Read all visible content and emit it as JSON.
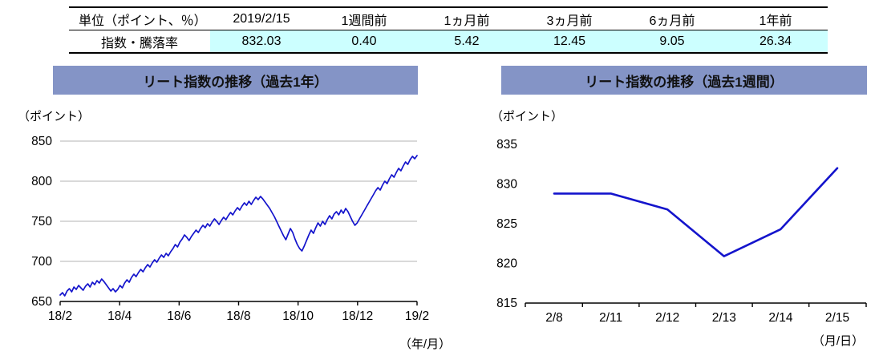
{
  "table": {
    "header": [
      "単位（ポイント、％）",
      "2019/2/15",
      "1週間前",
      "1ヵ月前",
      "3ヵ月前",
      "6ヵ月前",
      "1年前"
    ],
    "row_label": "指数・騰落率",
    "values": [
      "832.03",
      "0.40",
      "5.42",
      "12.45",
      "9.05",
      "26.34"
    ]
  },
  "colors": {
    "line": "#1414cc",
    "banner": "#8494c6",
    "cell_bg": "#ccffff",
    "grid": "#b3b3b3",
    "axis": "#000000"
  },
  "chart_data": [
    {
      "type": "line",
      "title": "リート指数の推移（過去1年）",
      "ylabel": "（ポイント）",
      "xlabel": "（年/月）",
      "ylim": [
        650,
        850
      ],
      "yticks": [
        650,
        700,
        750,
        800,
        850
      ],
      "grid": true,
      "legend": "none",
      "xticklabels": [
        "18/2",
        "18/4",
        "18/6",
        "18/8",
        "18/10",
        "18/12",
        "19/2"
      ],
      "values": [
        658,
        661,
        657,
        663,
        666,
        662,
        668,
        665,
        670,
        667,
        664,
        669,
        672,
        668,
        674,
        671,
        676,
        673,
        678,
        675,
        671,
        667,
        663,
        666,
        662,
        665,
        670,
        667,
        673,
        677,
        674,
        680,
        684,
        681,
        686,
        690,
        687,
        692,
        696,
        693,
        698,
        702,
        699,
        704,
        708,
        705,
        710,
        707,
        712,
        716,
        721,
        718,
        724,
        728,
        733,
        730,
        726,
        731,
        735,
        739,
        736,
        741,
        745,
        742,
        747,
        744,
        749,
        753,
        750,
        746,
        751,
        755,
        752,
        757,
        761,
        758,
        763,
        767,
        764,
        769,
        773,
        770,
        775,
        771,
        776,
        780,
        777,
        781,
        778,
        774,
        770,
        766,
        761,
        756,
        750,
        744,
        738,
        732,
        727,
        734,
        741,
        736,
        728,
        721,
        716,
        713,
        719,
        726,
        733,
        739,
        735,
        742,
        748,
        744,
        750,
        746,
        752,
        757,
        753,
        759,
        762,
        758,
        764,
        760,
        766,
        762,
        756,
        750,
        745,
        748,
        753,
        758,
        763,
        768,
        773,
        778,
        783,
        788,
        792,
        789,
        795,
        800,
        797,
        803,
        808,
        805,
        811,
        816,
        813,
        819,
        824,
        821,
        827,
        831,
        828,
        832
      ]
    },
    {
      "type": "line",
      "title": "リート指数の推移（過去1週間）",
      "ylabel": "（ポイント）",
      "xlabel": "（月/日）",
      "ylim": [
        815,
        835
      ],
      "yticks": [
        815,
        820,
        825,
        830,
        835
      ],
      "grid": false,
      "legend": "none",
      "xticklabels": [
        "2/8",
        "2/11",
        "2/12",
        "2/13",
        "2/14",
        "2/15"
      ],
      "values": [
        828.8,
        828.8,
        826.8,
        820.9,
        824.3,
        832.0
      ]
    }
  ]
}
